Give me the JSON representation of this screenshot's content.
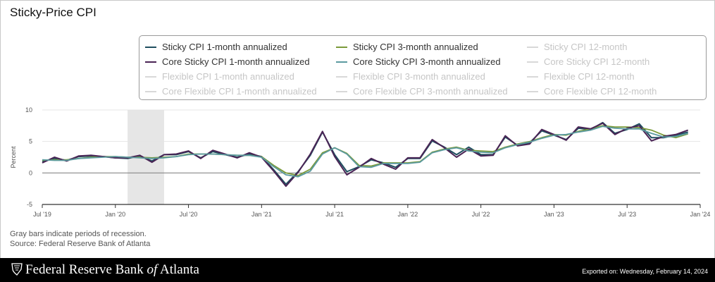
{
  "header": {
    "title": "Sticky-Price CPI"
  },
  "legend": {
    "items": [
      {
        "label": "Sticky CPI 1-month annualized",
        "color": "#1f4e5f",
        "active": true
      },
      {
        "label": "Sticky CPI 3-month annualized",
        "color": "#7a9a3a",
        "active": true
      },
      {
        "label": "Sticky CPI 12-month",
        "color": "#cccccc",
        "active": false
      },
      {
        "label": "Core Sticky CPI 1-month annualized",
        "color": "#4a2455",
        "active": true
      },
      {
        "label": "Core Sticky CPI 3-month annualized",
        "color": "#5b9aa0",
        "active": true
      },
      {
        "label": "Core Sticky CPI 12-month",
        "color": "#cccccc",
        "active": false
      },
      {
        "label": "Flexible CPI 1-month annualized",
        "color": "#cccccc",
        "active": false
      },
      {
        "label": "Flexible CPI 3-month annualized",
        "color": "#cccccc",
        "active": false
      },
      {
        "label": "Flexible CPI 12-month",
        "color": "#cccccc",
        "active": false
      },
      {
        "label": "Core Flexible CPI 1-month annualized",
        "color": "#cccccc",
        "active": false
      },
      {
        "label": "Core Flexible CPI 3-month annualized",
        "color": "#cccccc",
        "active": false
      },
      {
        "label": "Core Flexible CPI 12-month",
        "color": "#cccccc",
        "active": false
      }
    ]
  },
  "notes": {
    "recession": "Gray bars indicate periods of recession.",
    "source": "Source: Federal Reserve Bank of Atlanta"
  },
  "footer": {
    "org": "Federal Reserve Bank",
    "org_of": "of",
    "org_city": "Atlanta",
    "exported": "Exported on: Wednesday, February 14, 2024"
  },
  "chart_data": {
    "type": "line",
    "title": "Sticky-Price CPI",
    "ylabel": "Percent",
    "ylim": [
      -5,
      10
    ],
    "yticks": [
      10,
      5,
      0,
      -5
    ],
    "xticks": [
      "Jul '19",
      "Jan '20",
      "Jul '20",
      "Jan '21",
      "Jul '21",
      "Jan '22",
      "Jul '22",
      "Jan '23",
      "Jul '23",
      "Jan '24"
    ],
    "x_start": "2019-07",
    "x_end": "2024-01",
    "recession": {
      "start": "2020-02",
      "end": "2020-04"
    },
    "series": [
      {
        "name": "Sticky CPI 1-month annualized",
        "color": "#1f4e5f",
        "values": [
          1.8,
          2.3,
          2.0,
          2.6,
          2.7,
          2.6,
          2.4,
          2.3,
          2.7,
          1.9,
          2.9,
          2.9,
          3.4,
          2.4,
          3.4,
          2.9,
          2.5,
          3.0,
          2.6,
          0.5,
          -1.8,
          0.2,
          2.8,
          6.5,
          2.9,
          0.2,
          1.0,
          2.1,
          1.6,
          0.9,
          2.3,
          2.3,
          5.1,
          4.1,
          2.9,
          4.1,
          2.9,
          2.9,
          5.7,
          4.4,
          4.8,
          6.7,
          6.0,
          5.3,
          7.1,
          6.9,
          8.0,
          6.3,
          6.9,
          7.8,
          5.6,
          5.6,
          6.0,
          6.5
        ]
      },
      {
        "name": "Sticky CPI 3-month annualized",
        "color": "#7a9a3a",
        "values": [
          2.0,
          2.1,
          2.1,
          2.3,
          2.5,
          2.6,
          2.6,
          2.5,
          2.5,
          2.4,
          2.5,
          2.6,
          3.0,
          3.0,
          3.0,
          2.9,
          2.8,
          2.8,
          2.6,
          1.2,
          0.0,
          -0.4,
          0.6,
          3.2,
          4.0,
          3.1,
          1.2,
          1.1,
          1.6,
          1.6,
          1.6,
          1.8,
          3.3,
          3.8,
          4.1,
          3.6,
          3.5,
          3.4,
          4.1,
          4.6,
          5.0,
          5.6,
          6.1,
          6.0,
          6.6,
          7.0,
          7.5,
          7.3,
          7.3,
          7.2,
          6.8,
          6.0,
          5.6,
          6.2
        ]
      },
      {
        "name": "Core Sticky CPI 1-month annualized",
        "color": "#4a2455",
        "values": [
          1.6,
          2.5,
          1.9,
          2.7,
          2.8,
          2.6,
          2.4,
          2.4,
          2.8,
          1.7,
          2.9,
          3.0,
          3.5,
          2.3,
          3.6,
          3.0,
          2.4,
          3.2,
          2.5,
          0.3,
          -2.1,
          0.1,
          3.0,
          6.6,
          2.6,
          -0.3,
          0.9,
          2.3,
          1.4,
          0.6,
          2.4,
          2.4,
          5.3,
          4.0,
          2.5,
          3.8,
          2.7,
          2.8,
          5.9,
          4.3,
          4.6,
          6.9,
          6.1,
          5.2,
          7.3,
          7.0,
          7.9,
          6.1,
          7.1,
          7.5,
          5.1,
          5.8,
          6.1,
          6.8
        ]
      },
      {
        "name": "Core Sticky CPI 3-month annualized",
        "color": "#5b9aa0",
        "values": [
          2.1,
          2.0,
          2.0,
          2.3,
          2.4,
          2.5,
          2.6,
          2.5,
          2.4,
          2.3,
          2.4,
          2.6,
          2.9,
          3.0,
          3.0,
          2.9,
          2.8,
          2.8,
          2.5,
          1.0,
          -0.3,
          -0.6,
          0.3,
          3.0,
          4.0,
          3.0,
          1.0,
          0.9,
          1.5,
          1.5,
          1.5,
          1.7,
          3.2,
          3.7,
          4.0,
          3.5,
          3.3,
          3.2,
          4.0,
          4.5,
          4.9,
          5.5,
          6.0,
          6.1,
          6.5,
          6.8,
          7.4,
          7.1,
          7.0,
          7.0,
          6.3,
          5.7,
          5.8,
          6.3
        ]
      }
    ]
  }
}
